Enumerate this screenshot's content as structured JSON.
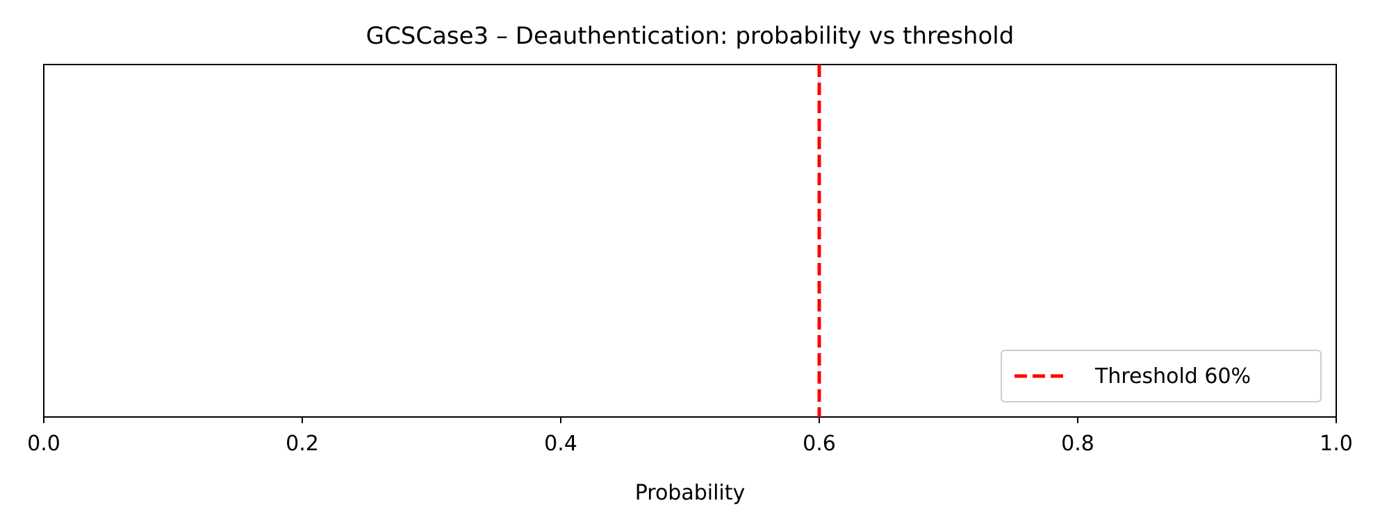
{
  "chart_data": {
    "type": "line",
    "title": "GCSCase3 – Deauthentication: probability vs threshold",
    "xlabel": "Probability",
    "ylabel": "",
    "xlim": [
      0.0,
      1.0
    ],
    "xticks": [
      0.0,
      0.2,
      0.4,
      0.6,
      0.8,
      1.0
    ],
    "xtick_labels": [
      "0.0",
      "0.2",
      "0.4",
      "0.6",
      "0.8",
      "1.0"
    ],
    "yticks": [],
    "grid": false,
    "legend_position": "lower right",
    "series": [
      {
        "name": "Threshold 60%",
        "kind": "vertical-line",
        "x": 0.6,
        "color": "#ff0000",
        "linestyle": "dashed"
      }
    ]
  }
}
